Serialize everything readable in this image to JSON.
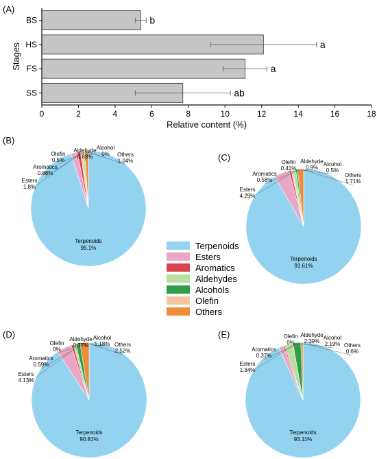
{
  "colors": {
    "bar": "#c6c6c6",
    "Terpenoids": "#93d3f0",
    "Esters": "#e9a6c5",
    "Aromatics": "#d8434d",
    "Aldehydes": "#b9dea0",
    "Alcohols": "#2e9e48",
    "Olefin": "#f3c79d",
    "Others": "#ee8c3a"
  },
  "legend": [
    "Terpenoids",
    "Esters",
    "Aromatics",
    "Aldehydes",
    "Alcohols",
    "Olefin",
    "Others"
  ],
  "chart_data": [
    {
      "type": "bar",
      "orientation": "horizontal",
      "panel": "(A)",
      "xlabel": "Relative content (%)",
      "ylabel": "Stages",
      "xlim": [
        0,
        18
      ],
      "xticks": [
        "0",
        "2",
        "4",
        "6",
        "8",
        "10",
        "12",
        "14",
        "16",
        "18"
      ],
      "categories": [
        "BS",
        "HS",
        "FS",
        "SS"
      ],
      "values": [
        5.4,
        12.1,
        11.1,
        7.7
      ],
      "errors": [
        0.3,
        2.9,
        1.2,
        2.6
      ],
      "significance": [
        "b",
        "a",
        "a",
        "ab"
      ]
    },
    {
      "type": "pie",
      "panel": "(B)",
      "labels": [
        "Terpenoids",
        "Esters",
        "Aromatics",
        "Olefin",
        "Aldehyde",
        "Alcohol",
        "Others"
      ],
      "values": [
        95.1,
        1.8,
        0.88,
        0.5,
        0.68,
        0,
        1.04
      ],
      "display": [
        "95.1%",
        "1.8%",
        "0.88%",
        "0.5%",
        "0.68%",
        "0%",
        "1.04%"
      ]
    },
    {
      "type": "pie",
      "panel": "(C)",
      "labels": [
        "Terpenoids",
        "Esters",
        "Aromatics",
        "Olefin",
        "Aldehyde",
        "Alcohol",
        "Others"
      ],
      "values": [
        91.61,
        4.29,
        0.58,
        0.41,
        0.9,
        0.5,
        1.71
      ],
      "display": [
        "91.61%",
        "4.29%",
        "0.58%",
        "0.41%",
        "0.9%",
        "0.5%",
        "1.71%"
      ]
    },
    {
      "type": "pie",
      "panel": "(D)",
      "labels": [
        "Terpenoids",
        "Esters",
        "Aromatics",
        "Olefin",
        "Aldehyde",
        "Alcohol",
        "Others"
      ],
      "values": [
        90.81,
        4.13,
        0.59,
        0,
        0.77,
        1.18,
        2.52
      ],
      "display": [
        "90.81%",
        "4.13%",
        "0.59%",
        "0%",
        "0.77%",
        "1.18%",
        "2.52%"
      ]
    },
    {
      "type": "pie",
      "panel": "(E)",
      "labels": [
        "Terpenoids",
        "Esters",
        "Aromatics",
        "Olefin",
        "Aldehyde",
        "Alcohol",
        "Others"
      ],
      "values": [
        93.11,
        1.34,
        0.37,
        0,
        2.39,
        2.19,
        0.6
      ],
      "display": [
        "93.11%",
        "1.34%",
        "0.37%",
        "0%",
        "2.39%",
        "2.19%",
        "0.6%"
      ]
    }
  ]
}
